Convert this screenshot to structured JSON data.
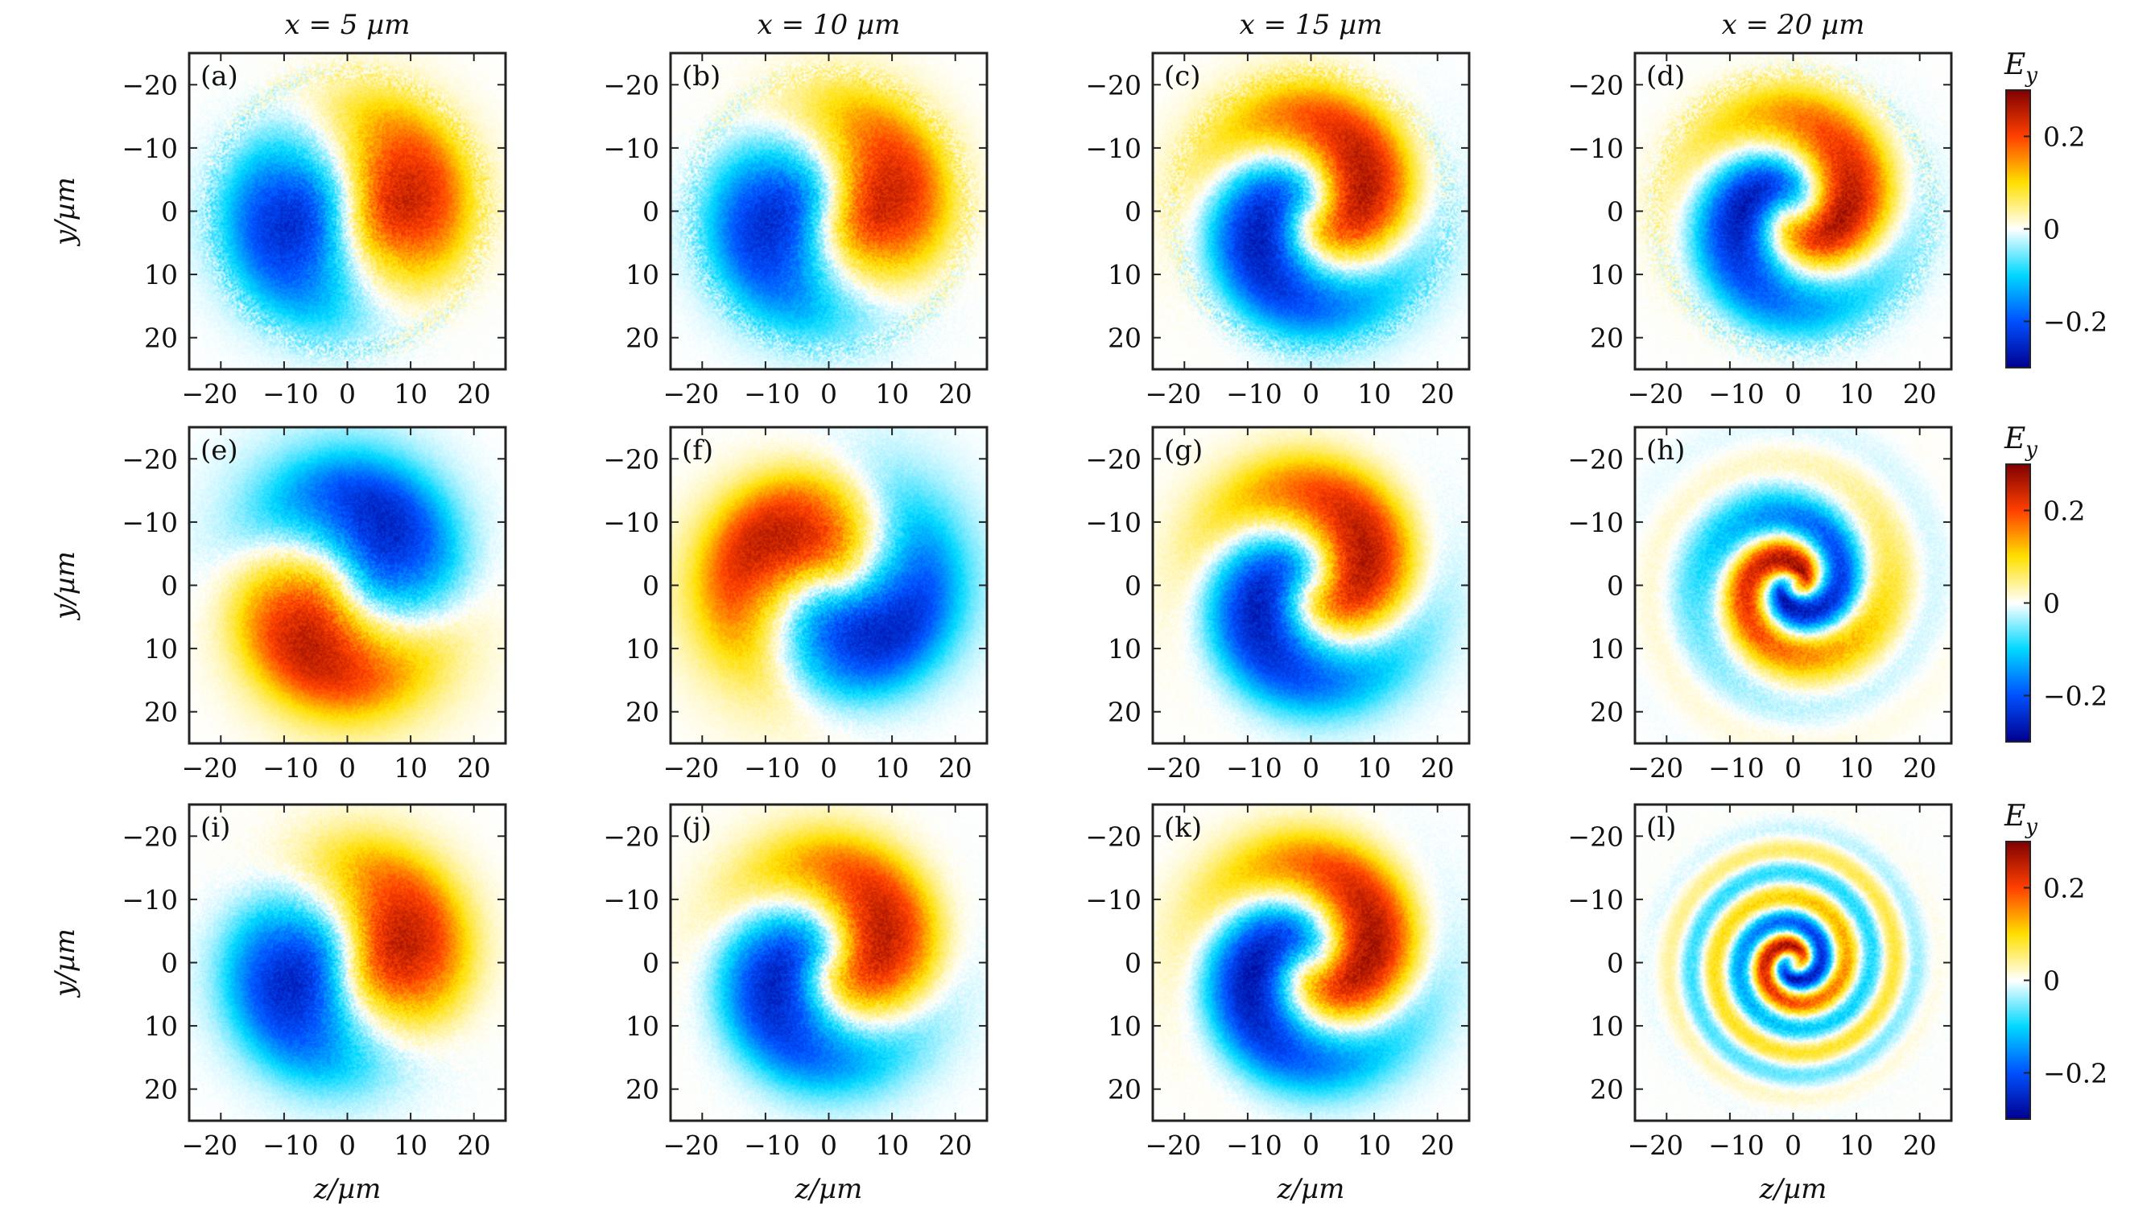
{
  "figure": {
    "column_titles": [
      "x = 5 µm",
      "x = 10 µm",
      "x = 15 µm",
      "x = 20 µm"
    ],
    "row_ylabel": "y/µm",
    "xlabel": "z/µm",
    "colorbar_label": "E",
    "colorbar_label_sub": "y"
  },
  "chart_data": {
    "type": "heatmap",
    "quantity": "E_y",
    "xlim": [
      -25,
      25
    ],
    "ylim": [
      -25,
      25
    ],
    "y_axis_inverted": true,
    "x_ticks": [
      -20,
      -10,
      0,
      10,
      20
    ],
    "x_tick_labels": [
      "−20",
      "−10",
      "0",
      "10",
      "20"
    ],
    "y_ticks": [
      -20,
      -10,
      0,
      10,
      20
    ],
    "y_tick_labels": [
      "−20",
      "−10",
      "0",
      "10",
      "20"
    ],
    "colorbar": {
      "range": [
        -0.3,
        0.3
      ],
      "ticks": [
        0.2,
        0,
        -0.2
      ],
      "tick_labels": [
        "0.2",
        "0",
        "−0.2"
      ],
      "stops": [
        {
          "v": -0.3,
          "color": "#00008f"
        },
        {
          "v": -0.2,
          "color": "#0050ff"
        },
        {
          "v": -0.1,
          "color": "#00d8ff"
        },
        {
          "v": 0.0,
          "color": "#ffffff"
        },
        {
          "v": 0.1,
          "color": "#ffe000"
        },
        {
          "v": 0.2,
          "color": "#ff4000"
        },
        {
          "v": 0.3,
          "color": "#800000"
        }
      ]
    },
    "panels": [
      {
        "label": "(a)",
        "x_um": 5,
        "row": 0,
        "col": 0,
        "pattern": "dipole",
        "rotation_deg": 0,
        "twist": 0.1,
        "radius": 9,
        "amplitude": 0.25,
        "ring_noise": true
      },
      {
        "label": "(b)",
        "x_um": 10,
        "row": 0,
        "col": 1,
        "pattern": "dipole",
        "rotation_deg": 15,
        "twist": 0.2,
        "radius": 9,
        "amplitude": 0.25,
        "ring_noise": true
      },
      {
        "label": "(c)",
        "x_um": 15,
        "row": 0,
        "col": 2,
        "pattern": "dipole",
        "rotation_deg": 40,
        "twist": 0.5,
        "radius": 9,
        "amplitude": 0.27,
        "ring_noise": true
      },
      {
        "label": "(d)",
        "x_um": 20,
        "row": 0,
        "col": 3,
        "pattern": "dipole",
        "rotation_deg": 80,
        "twist": 0.6,
        "radius": 8,
        "amplitude": 0.28,
        "ring_noise": true
      },
      {
        "label": "(e)",
        "x_um": 5,
        "row": 1,
        "col": 0,
        "pattern": "dipole",
        "rotation_deg": 150,
        "twist": 0.2,
        "radius": 10,
        "amplitude": 0.25,
        "ring_noise": false
      },
      {
        "label": "(f)",
        "x_um": 10,
        "row": 1,
        "col": 1,
        "pattern": "dipole",
        "rotation_deg": 265,
        "twist": 0.3,
        "radius": 10,
        "amplitude": 0.25,
        "ring_noise": false
      },
      {
        "label": "(g)",
        "x_um": 15,
        "row": 1,
        "col": 2,
        "pattern": "dipole",
        "rotation_deg": 40,
        "twist": 0.5,
        "radius": 9,
        "amplitude": 0.27,
        "ring_noise": false
      },
      {
        "label": "(h)",
        "x_um": 20,
        "row": 1,
        "col": 3,
        "pattern": "spiral",
        "rotation_deg": 0,
        "twist": 1.2,
        "radius": 9,
        "amplitude": 0.29,
        "ring_noise": false
      },
      {
        "label": "(i)",
        "x_um": 5,
        "row": 2,
        "col": 0,
        "pattern": "dipole",
        "rotation_deg": 0,
        "twist": 0.15,
        "radius": 9,
        "amplitude": 0.26,
        "ring_noise": false
      },
      {
        "label": "(j)",
        "x_um": 10,
        "row": 2,
        "col": 1,
        "pattern": "dipole",
        "rotation_deg": 30,
        "twist": 0.4,
        "radius": 9,
        "amplitude": 0.26,
        "ring_noise": false
      },
      {
        "label": "(k)",
        "x_um": 15,
        "row": 2,
        "col": 2,
        "pattern": "dipole",
        "rotation_deg": 70,
        "twist": 0.6,
        "radius": 9,
        "amplitude": 0.28,
        "ring_noise": false
      },
      {
        "label": "(l)",
        "x_um": 20,
        "row": 2,
        "col": 3,
        "pattern": "spiral",
        "rotation_deg": 20,
        "twist": 2.2,
        "radius": 6,
        "amplitude": 0.3,
        "ring_noise": false
      }
    ]
  }
}
